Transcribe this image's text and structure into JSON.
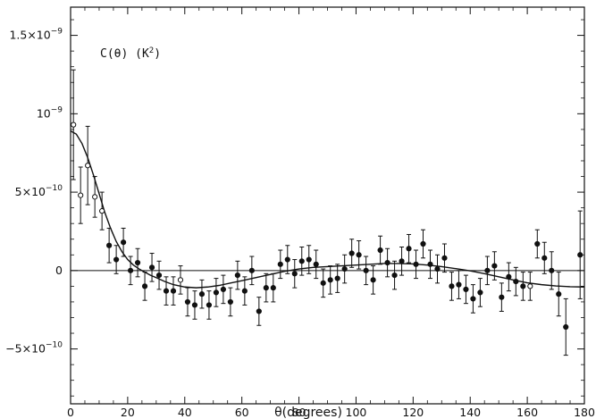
{
  "chart_data": {
    "type": "scatter",
    "title": "",
    "annotation": "C(θ) (K²)",
    "xlabel": "θ(degrees)",
    "ylabel": "",
    "xlim": [
      0,
      180
    ],
    "ylim": [
      -8.5e-10,
      1.68e-09
    ],
    "x_ticks": [
      0,
      20,
      40,
      60,
      80,
      100,
      120,
      140,
      160,
      180
    ],
    "x_tick_labels": [
      "0",
      "20",
      "40",
      "60",
      "80",
      "100",
      "120",
      "140",
      "160",
      "180"
    ],
    "y_ticks": [
      -5e-10,
      0,
      5e-10,
      1e-09,
      1.5e-09
    ],
    "y_tick_labels": [
      {
        "mant": "−5×10",
        "exp": "−10"
      },
      {
        "mant": "0",
        "exp": ""
      },
      {
        "mant": "5×10",
        "exp": "−10"
      },
      {
        "mant": "10",
        "exp": "−9"
      },
      {
        "mant": "1.5×10",
        "exp": "−9"
      }
    ],
    "grid": false,
    "zero_line": true,
    "points": [
      {
        "x": 1.0,
        "y": 9.3e-10,
        "err": 3.5e-10,
        "style": "open"
      },
      {
        "x": 3.5,
        "y": 4.8e-10,
        "err": 1.8e-10,
        "style": "open"
      },
      {
        "x": 6.0,
        "y": 6.7e-10,
        "err": 2.5e-10,
        "style": "open"
      },
      {
        "x": 8.5,
        "y": 4.7e-10,
        "err": 1.3e-10,
        "style": "open"
      },
      {
        "x": 11.0,
        "y": 3.8e-10,
        "err": 1.2e-10,
        "style": "open"
      },
      {
        "x": 13.5,
        "y": 1.6e-10,
        "err": 1.1e-10,
        "style": "filled"
      },
      {
        "x": 16.0,
        "y": 7e-11,
        "err": 9e-11,
        "style": "filled"
      },
      {
        "x": 18.5,
        "y": 1.8e-10,
        "err": 9e-11,
        "style": "filled"
      },
      {
        "x": 21.0,
        "y": 0.0,
        "err": 9e-11,
        "style": "filled"
      },
      {
        "x": 23.5,
        "y": 5e-11,
        "err": 9e-11,
        "style": "filled"
      },
      {
        "x": 26.0,
        "y": -1e-10,
        "err": 9e-11,
        "style": "filled"
      },
      {
        "x": 28.5,
        "y": 2e-11,
        "err": 9e-11,
        "style": "filled"
      },
      {
        "x": 31.0,
        "y": -3e-11,
        "err": 9e-11,
        "style": "filled"
      },
      {
        "x": 33.5,
        "y": -1.3e-10,
        "err": 9e-11,
        "style": "filled"
      },
      {
        "x": 36.0,
        "y": -1.3e-10,
        "err": 9e-11,
        "style": "filled"
      },
      {
        "x": 38.5,
        "y": -6e-11,
        "err": 9e-11,
        "style": "open"
      },
      {
        "x": 41.0,
        "y": -2e-10,
        "err": 9e-11,
        "style": "filled"
      },
      {
        "x": 43.5,
        "y": -2.2e-10,
        "err": 9e-11,
        "style": "filled"
      },
      {
        "x": 46.0,
        "y": -1.5e-10,
        "err": 9e-11,
        "style": "filled"
      },
      {
        "x": 48.5,
        "y": -2.2e-10,
        "err": 9e-11,
        "style": "filled"
      },
      {
        "x": 51.0,
        "y": -1.4e-10,
        "err": 9e-11,
        "style": "filled"
      },
      {
        "x": 53.5,
        "y": -1.2e-10,
        "err": 9e-11,
        "style": "filled"
      },
      {
        "x": 56.0,
        "y": -2e-10,
        "err": 9e-11,
        "style": "filled"
      },
      {
        "x": 58.5,
        "y": -3e-11,
        "err": 9e-11,
        "style": "filled"
      },
      {
        "x": 61.0,
        "y": -1.3e-10,
        "err": 9e-11,
        "style": "filled"
      },
      {
        "x": 63.5,
        "y": 0.0,
        "err": 9e-11,
        "style": "filled"
      },
      {
        "x": 66.0,
        "y": -2.6e-10,
        "err": 9e-11,
        "style": "filled"
      },
      {
        "x": 68.5,
        "y": -1.1e-10,
        "err": 9e-11,
        "style": "filled"
      },
      {
        "x": 71.0,
        "y": -1.1e-10,
        "err": 9e-11,
        "style": "filled"
      },
      {
        "x": 73.5,
        "y": 4e-11,
        "err": 9e-11,
        "style": "filled"
      },
      {
        "x": 76.0,
        "y": 7e-11,
        "err": 9e-11,
        "style": "filled"
      },
      {
        "x": 78.5,
        "y": -2e-11,
        "err": 9e-11,
        "style": "filled"
      },
      {
        "x": 81.0,
        "y": 6e-11,
        "err": 9e-11,
        "style": "filled"
      },
      {
        "x": 83.5,
        "y": 7e-11,
        "err": 9e-11,
        "style": "filled"
      },
      {
        "x": 86.0,
        "y": 4e-11,
        "err": 9e-11,
        "style": "filled"
      },
      {
        "x": 88.5,
        "y": -8e-11,
        "err": 9e-11,
        "style": "filled"
      },
      {
        "x": 91.0,
        "y": -6e-11,
        "err": 9e-11,
        "style": "filled"
      },
      {
        "x": 93.5,
        "y": -5e-11,
        "err": 9e-11,
        "style": "filled"
      },
      {
        "x": 96.0,
        "y": 1e-11,
        "err": 9e-11,
        "style": "filled"
      },
      {
        "x": 98.5,
        "y": 1.1e-10,
        "err": 9e-11,
        "style": "filled"
      },
      {
        "x": 101.0,
        "y": 1e-10,
        "err": 9e-11,
        "style": "filled"
      },
      {
        "x": 103.5,
        "y": 0.0,
        "err": 9e-11,
        "style": "filled"
      },
      {
        "x": 106.0,
        "y": -6e-11,
        "err": 9e-11,
        "style": "filled"
      },
      {
        "x": 108.5,
        "y": 1.3e-10,
        "err": 9e-11,
        "style": "filled"
      },
      {
        "x": 111.0,
        "y": 5e-11,
        "err": 9e-11,
        "style": "filled"
      },
      {
        "x": 113.5,
        "y": -3e-11,
        "err": 9e-11,
        "style": "filled"
      },
      {
        "x": 116.0,
        "y": 6e-11,
        "err": 9e-11,
        "style": "filled"
      },
      {
        "x": 118.5,
        "y": 1.4e-10,
        "err": 9e-11,
        "style": "filled"
      },
      {
        "x": 121.0,
        "y": 4e-11,
        "err": 9e-11,
        "style": "filled"
      },
      {
        "x": 123.5,
        "y": 1.7e-10,
        "err": 9e-11,
        "style": "filled"
      },
      {
        "x": 126.0,
        "y": 4e-11,
        "err": 9e-11,
        "style": "filled"
      },
      {
        "x": 128.5,
        "y": 1e-11,
        "err": 9e-11,
        "style": "filled"
      },
      {
        "x": 131.0,
        "y": 8e-11,
        "err": 9e-11,
        "style": "filled"
      },
      {
        "x": 133.5,
        "y": -1e-10,
        "err": 9e-11,
        "style": "filled"
      },
      {
        "x": 136.0,
        "y": -9e-11,
        "err": 9e-11,
        "style": "filled"
      },
      {
        "x": 138.5,
        "y": -1.2e-10,
        "err": 9e-11,
        "style": "filled"
      },
      {
        "x": 141.0,
        "y": -1.8e-10,
        "err": 9e-11,
        "style": "filled"
      },
      {
        "x": 143.5,
        "y": -1.4e-10,
        "err": 9e-11,
        "style": "filled"
      },
      {
        "x": 146.0,
        "y": 0.0,
        "err": 9e-11,
        "style": "filled"
      },
      {
        "x": 148.5,
        "y": 3e-11,
        "err": 9e-11,
        "style": "filled"
      },
      {
        "x": 151.0,
        "y": -1.7e-10,
        "err": 9e-11,
        "style": "filled"
      },
      {
        "x": 153.5,
        "y": -4e-11,
        "err": 9e-11,
        "style": "filled"
      },
      {
        "x": 156.0,
        "y": -7e-11,
        "err": 9e-11,
        "style": "filled"
      },
      {
        "x": 158.5,
        "y": -1e-10,
        "err": 9e-11,
        "style": "filled"
      },
      {
        "x": 161.0,
        "y": -1e-10,
        "err": 9e-11,
        "style": "open"
      },
      {
        "x": 163.5,
        "y": 1.7e-10,
        "err": 9e-11,
        "style": "filled"
      },
      {
        "x": 166.0,
        "y": 8e-11,
        "err": 1e-10,
        "style": "filled"
      },
      {
        "x": 168.5,
        "y": 0.0,
        "err": 1.2e-10,
        "style": "filled"
      },
      {
        "x": 171.0,
        "y": -1.5e-10,
        "err": 1.4e-10,
        "style": "filled"
      },
      {
        "x": 173.5,
        "y": -3.6e-10,
        "err": 1.8e-10,
        "style": "filled"
      },
      {
        "x": 178.5,
        "y": 1e-10,
        "err": 2.8e-10,
        "style": "filled"
      }
    ],
    "fit_curve": {
      "x": [
        0,
        2,
        4,
        6,
        8,
        10,
        12,
        14,
        16,
        18,
        20,
        22,
        24,
        26,
        28,
        30,
        33,
        36,
        40,
        44,
        48,
        52,
        56,
        60,
        65,
        70,
        75,
        80,
        85,
        90,
        95,
        100,
        105,
        110,
        115,
        120,
        125,
        130,
        135,
        140,
        145,
        150,
        155,
        160,
        165,
        170,
        175,
        180
      ],
      "y": [
        8.9e-10,
        8.7e-10,
        8.1e-10,
        7.2e-10,
        6.1e-10,
        4.9e-10,
        3.7e-10,
        2.7e-10,
        1.85e-10,
        1.2e-10,
        7e-11,
        3.5e-11,
        1e-11,
        -1e-11,
        -3e-11,
        -4.5e-11,
        -7e-11,
        -9e-11,
        -1.05e-10,
        -1.1e-10,
        -1.05e-10,
        -9.5e-11,
        -8e-11,
        -6.5e-11,
        -4.5e-11,
        -2.5e-11,
        -5e-12,
        1e-11,
        2e-11,
        2.5e-11,
        3e-11,
        3.5e-11,
        4e-11,
        4.5e-11,
        4.5e-11,
        4.2e-11,
        3.5e-11,
        2.5e-11,
        1.2e-11,
        -2e-12,
        -2e-11,
        -4e-11,
        -6e-11,
        -7.8e-11,
        -9e-11,
        -9.8e-11,
        -1.03e-10,
        -1.05e-10
      ]
    }
  }
}
